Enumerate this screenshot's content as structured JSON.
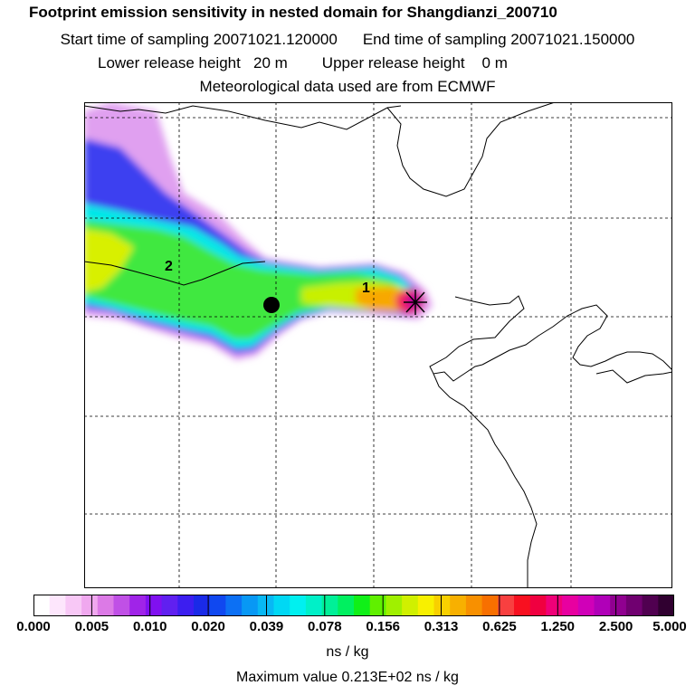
{
  "title": {
    "line1": "Footprint emission sensitivity in nested domain for Shangdianzi_200710",
    "start": "Start time of sampling 20071021.120000",
    "end": "End time of sampling 20071021.150000",
    "lower": "Lower release height   20 m",
    "upper": "Upper release height    0 m",
    "met": "Meteorological data used are from ECMWF"
  },
  "markers": {
    "label1": "1",
    "label2": "2"
  },
  "scale": {
    "ticks": [
      "0.000",
      "0.005",
      "0.010",
      "0.020",
      "0.039",
      "0.078",
      "0.156",
      "0.313",
      "0.625",
      "1.250",
      "2.500",
      "5.000"
    ],
    "unit": "ns / kg",
    "max_label": "Maximum value  0.213E+02 ns / kg",
    "colors": [
      "#ffffff",
      "#fde6fc",
      "#f8c8f6",
      "#f0a8ef",
      "#dc7ae6",
      "#c050e6",
      "#a024e8",
      "#8010f0",
      "#6020f0",
      "#3c1ef0",
      "#1a2ae8",
      "#1048f0",
      "#0c70f4",
      "#0898f4",
      "#08b8f4",
      "#00d8f4",
      "#00f0f0",
      "#00f0c8",
      "#00f098",
      "#00f060",
      "#10f018",
      "#60f000",
      "#a0f000",
      "#d0f000",
      "#f8f000",
      "#f8d000",
      "#f8b000",
      "#f89000",
      "#f87000",
      "#f84040",
      "#f81020",
      "#f00040",
      "#f00078",
      "#e800a0",
      "#d000b8",
      "#b000b8",
      "#900090",
      "#700070",
      "#500050",
      "#300030"
    ]
  }
}
